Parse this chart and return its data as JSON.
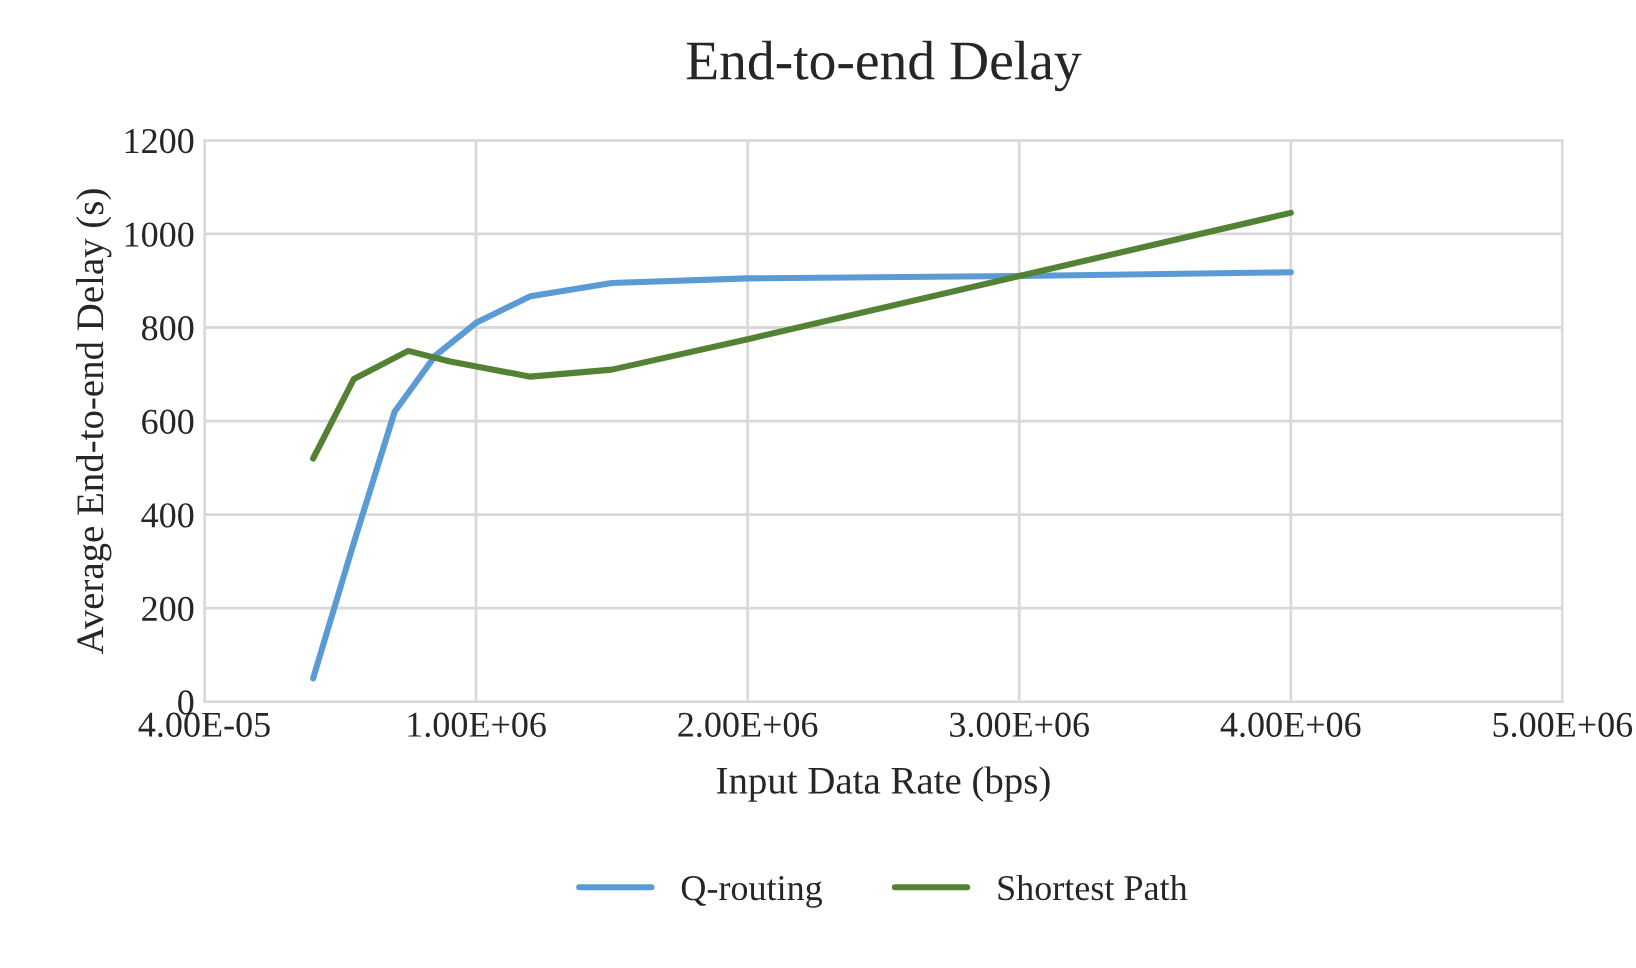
{
  "chart_data": {
    "type": "line",
    "title": "End-to-end Delay",
    "xlabel": "Input Data Rate (bps)",
    "ylabel": "Average End-to-end Delay (s)",
    "xlim": [
      4e-05,
      5000000
    ],
    "xticks": [
      {
        "value": 4e-05,
        "label": "4.00E-05"
      },
      {
        "value": 1000000,
        "label": "1.00E+06"
      },
      {
        "value": 2000000,
        "label": "2.00E+06"
      },
      {
        "value": 3000000,
        "label": "3.00E+06"
      },
      {
        "value": 4000000,
        "label": "4.00E+06"
      },
      {
        "value": 5000000,
        "label": "5.00E+06"
      }
    ],
    "ylim": [
      0,
      1200
    ],
    "yticks": [
      0,
      200,
      400,
      600,
      800,
      1000,
      1200
    ],
    "grid": true,
    "legend": "bottom",
    "marker": "none",
    "line_style": "solid",
    "series": [
      {
        "name": "Q-routing",
        "color": "#5b9bd5",
        "x": [
          400000,
          550000,
          700000,
          850000,
          1000000,
          1200000,
          1500000,
          2000000,
          3000000,
          4000000
        ],
        "values": [
          50,
          340,
          620,
          740,
          810,
          867,
          895,
          905,
          910,
          918
        ]
      },
      {
        "name": "Shortest Path",
        "color": "#548235",
        "x": [
          400000,
          550000,
          750000,
          900000,
          1200000,
          1500000,
          2000000,
          3000000,
          4000000
        ],
        "values": [
          520,
          690,
          750,
          728,
          695,
          710,
          775,
          910,
          1045
        ]
      }
    ]
  }
}
